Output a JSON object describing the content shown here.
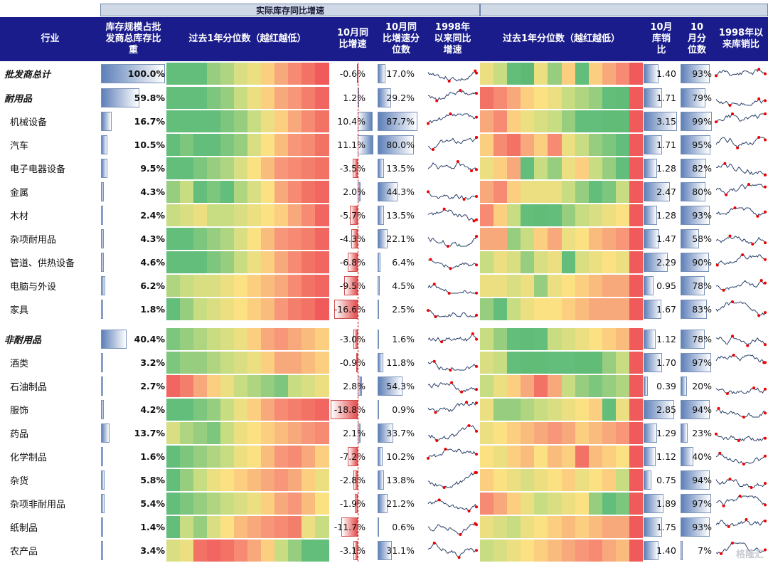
{
  "headers": {
    "group_left": "实际库存同比增速",
    "group_right": "",
    "industry": "行业",
    "share": "库存规模占批发商总库存比重",
    "heat_left": "过去1年分位数（越红越低）",
    "yoy": "10月同比增速",
    "yoy_pct": "10月同比增速分位数",
    "since98_yoy": "1998年以来同比增速",
    "heat_right": "过去1年分位数（越红越低）",
    "ratio": "10月库销比",
    "ratio_pct": "10月分位数",
    "since98_ratio": "1998年以来库销比"
  },
  "watermark": "格隆汇",
  "chart_data": {
    "type": "table",
    "columns": [
      "行业",
      "库存规模占批发商总库存比重",
      "过去1年分位数（越红越低）",
      "10月同比增速",
      "10月同比增速分位数",
      "1998年以来同比增速",
      "过去1年分位数（越红越低）",
      "10月库销比",
      "10月分位数",
      "1998年以来库销比"
    ],
    "rows": [
      {
        "name": "批发商总计",
        "total": true,
        "share": "100.0%",
        "share_v": 100.0,
        "yoy": "-0.6%",
        "yoy_v": -0.6,
        "yoy_pct": "17.0%",
        "yoy_pct_v": 17.0,
        "ratio": "1.40",
        "ratio_v": 1.4,
        "ratio_pct": "93%",
        "ratio_pct_v": 93,
        "heat_left": [
          0.8,
          0.8,
          0.8,
          0.7,
          0.65,
          0.55,
          0.5,
          0.4,
          0.3,
          0.2,
          0.1,
          0.0
        ],
        "heat_right": [
          0.5,
          0.6,
          0.8,
          0.9,
          0.5,
          0.7,
          0.4,
          0.8,
          0.4,
          0.3,
          0.2,
          0.0
        ]
      },
      {
        "name": "耐用品",
        "total": true,
        "share": "59.8%",
        "share_v": 59.8,
        "yoy": "1.2%",
        "yoy_v": 1.2,
        "yoy_pct": "29.2%",
        "yoy_pct_v": 29.2,
        "ratio": "1.71",
        "ratio_v": 1.71,
        "ratio_pct": "79%",
        "ratio_pct_v": 79,
        "heat_left": [
          0.8,
          0.8,
          0.8,
          0.75,
          0.7,
          0.6,
          0.5,
          0.4,
          0.3,
          0.25,
          0.15,
          0.05
        ],
        "heat_right": [
          0.1,
          0.2,
          0.3,
          0.4,
          0.45,
          0.5,
          0.6,
          0.65,
          0.7,
          0.8,
          0.85,
          0.0
        ]
      },
      {
        "name": "机械设备",
        "total": false,
        "share": "16.7%",
        "share_v": 16.7,
        "yoy": "10.4%",
        "yoy_v": 10.4,
        "yoy_pct": "87.7%",
        "yoy_pct_v": 87.7,
        "ratio": "3.15",
        "ratio_v": 3.15,
        "ratio_pct": "99%",
        "ratio_pct_v": 99,
        "heat_left": [
          0.8,
          0.8,
          0.8,
          0.8,
          0.75,
          0.7,
          0.6,
          0.5,
          0.4,
          0.3,
          0.2,
          0.1
        ],
        "heat_right": [
          0.3,
          0.2,
          0.4,
          0.5,
          0.55,
          0.6,
          0.7,
          0.8,
          0.8,
          0.85,
          0.85,
          0.0
        ]
      },
      {
        "name": "汽车",
        "total": false,
        "share": "10.5%",
        "share_v": 10.5,
        "yoy": "11.1%",
        "yoy_v": 11.1,
        "yoy_pct": "80.0%",
        "yoy_pct_v": 80.0,
        "ratio": "1.71",
        "ratio_v": 1.71,
        "ratio_pct": "95%",
        "ratio_pct_v": 95,
        "heat_left": [
          0.8,
          0.75,
          0.8,
          0.8,
          0.75,
          0.7,
          0.55,
          0.45,
          0.35,
          0.25,
          0.2,
          0.1
        ],
        "heat_right": [
          0.4,
          0.2,
          0.1,
          0.3,
          0.4,
          0.2,
          0.5,
          0.6,
          0.7,
          0.75,
          0.8,
          0.0
        ]
      },
      {
        "name": "电子电器设备",
        "total": false,
        "share": "9.5%",
        "share_v": 9.5,
        "yoy": "-3.5%",
        "yoy_v": -3.5,
        "yoy_pct": "13.5%",
        "yoy_pct_v": 13.5,
        "ratio": "1.28",
        "ratio_v": 1.28,
        "ratio_pct": "82%",
        "ratio_pct_v": 82,
        "heat_left": [
          0.8,
          0.8,
          0.75,
          0.7,
          0.65,
          0.55,
          0.45,
          0.35,
          0.25,
          0.2,
          0.15,
          0.1
        ],
        "heat_right": [
          0.5,
          0.4,
          0.3,
          0.8,
          0.6,
          0.7,
          0.5,
          0.4,
          0.6,
          0.7,
          0.8,
          0.0
        ]
      },
      {
        "name": "金属",
        "total": false,
        "share": "4.3%",
        "share_v": 4.3,
        "yoy": "2.0%",
        "yoy_v": 2.0,
        "yoy_pct": "44.3%",
        "yoy_pct_v": 44.3,
        "ratio": "2.47",
        "ratio_v": 2.47,
        "ratio_pct": "80%",
        "ratio_pct_v": 80,
        "heat_left": [
          0.7,
          0.6,
          0.8,
          0.75,
          0.8,
          0.65,
          0.55,
          0.45,
          0.3,
          0.2,
          0.1,
          0.05
        ],
        "heat_right": [
          0.3,
          0.2,
          0.4,
          0.5,
          0.5,
          0.5,
          0.6,
          0.7,
          0.8,
          0.75,
          0.6,
          0.0
        ]
      },
      {
        "name": "木材",
        "total": false,
        "share": "2.4%",
        "share_v": 2.4,
        "yoy": "-5.7%",
        "yoy_v": -5.7,
        "yoy_pct": "13.5%",
        "yoy_pct_v": 13.5,
        "ratio": "1.28",
        "ratio_v": 1.28,
        "ratio_pct": "93%",
        "ratio_pct_v": 93,
        "heat_left": [
          0.6,
          0.55,
          0.5,
          0.6,
          0.6,
          0.55,
          0.5,
          0.45,
          0.4,
          0.3,
          0.2,
          0.05
        ],
        "heat_right": [
          0.2,
          0.4,
          0.6,
          0.8,
          0.85,
          0.8,
          0.7,
          0.6,
          0.55,
          0.5,
          0.45,
          0.0
        ]
      },
      {
        "name": "杂项耐用品",
        "total": false,
        "share": "4.3%",
        "share_v": 4.3,
        "yoy": "-4.3%",
        "yoy_v": -4.3,
        "yoy_pct": "22.1%",
        "yoy_pct_v": 22.1,
        "ratio": "1.47",
        "ratio_v": 1.47,
        "ratio_pct": "58%",
        "ratio_pct_v": 58,
        "heat_left": [
          0.8,
          0.8,
          0.75,
          0.7,
          0.65,
          0.55,
          0.45,
          0.35,
          0.25,
          0.2,
          0.15,
          0.05
        ],
        "heat_right": [
          0.3,
          0.3,
          0.7,
          0.6,
          0.4,
          0.3,
          0.5,
          0.45,
          0.35,
          0.3,
          0.25,
          0.0
        ]
      },
      {
        "name": "管道、供热设备",
        "total": false,
        "share": "4.6%",
        "share_v": 4.6,
        "yoy": "-6.8%",
        "yoy_v": -6.8,
        "yoy_pct": "6.4%",
        "yoy_pct_v": 6.4,
        "ratio": "2.29",
        "ratio_v": 2.29,
        "ratio_pct": "90%",
        "ratio_pct_v": 90,
        "heat_left": [
          0.8,
          0.8,
          0.8,
          0.75,
          0.7,
          0.6,
          0.5,
          0.4,
          0.3,
          0.2,
          0.1,
          0.05
        ],
        "heat_right": [
          0.6,
          0.5,
          0.55,
          0.7,
          0.55,
          0.5,
          0.8,
          0.55,
          0.5,
          0.45,
          0.5,
          0.0
        ]
      },
      {
        "name": "电脑与外设",
        "total": false,
        "share": "6.2%",
        "share_v": 6.2,
        "yoy": "-9.5%",
        "yoy_v": -9.5,
        "yoy_pct": "4.5%",
        "yoy_pct_v": 4.5,
        "ratio": "0.95",
        "ratio_v": 0.95,
        "ratio_pct": "78%",
        "ratio_pct_v": 78,
        "heat_left": [
          0.65,
          0.6,
          0.55,
          0.55,
          0.5,
          0.45,
          0.4,
          0.35,
          0.3,
          0.2,
          0.1,
          0.05
        ],
        "heat_right": [
          0.5,
          0.5,
          0.55,
          0.5,
          0.7,
          0.5,
          0.45,
          0.4,
          0.35,
          0.3,
          0.3,
          0.0
        ]
      },
      {
        "name": "家具",
        "total": false,
        "share": "1.8%",
        "share_v": 1.8,
        "yoy": "-16.6%",
        "yoy_v": -16.6,
        "yoy_pct": "2.5%",
        "yoy_pct_v": 2.5,
        "ratio": "1.67",
        "ratio_v": 1.67,
        "ratio_pct": "83%",
        "ratio_pct_v": 83,
        "heat_left": [
          0.8,
          0.7,
          0.6,
          0.55,
          0.5,
          0.45,
          0.4,
          0.35,
          0.25,
          0.15,
          0.1,
          0.0
        ],
        "heat_right": [
          0.7,
          0.8,
          0.6,
          0.5,
          0.45,
          0.45,
          0.4,
          0.35,
          0.3,
          0.3,
          0.3,
          0.0
        ]
      },
      {
        "name": "非耐用品",
        "total": true,
        "share": "40.4%",
        "share_v": 40.4,
        "yoy": "-3.0%",
        "yoy_v": -3.0,
        "yoy_pct": "1.6%",
        "yoy_pct_v": 1.6,
        "ratio": "1.12",
        "ratio_v": 1.12,
        "ratio_pct": "78%",
        "ratio_pct_v": 78,
        "heat_left": [
          0.75,
          0.7,
          0.65,
          0.6,
          0.55,
          0.5,
          0.4,
          0.3,
          0.25,
          0.3,
          0.35,
          0.4
        ],
        "heat_right": [
          0.6,
          0.7,
          0.8,
          0.85,
          0.8,
          0.6,
          0.55,
          0.5,
          0.45,
          0.4,
          0.35,
          0.0
        ]
      },
      {
        "name": "酒类",
        "total": false,
        "share": "3.2%",
        "share_v": 3.2,
        "yoy": "-0.9%",
        "yoy_v": -0.9,
        "yoy_pct": "11.8%",
        "yoy_pct_v": 11.8,
        "ratio": "1.70",
        "ratio_v": 1.7,
        "ratio_pct": "97%",
        "ratio_pct_v": 97,
        "heat_left": [
          0.75,
          0.7,
          0.7,
          0.65,
          0.6,
          0.55,
          0.5,
          0.4,
          0.3,
          0.3,
          0.35,
          0.4
        ],
        "heat_right": [
          0.55,
          0.6,
          0.8,
          0.85,
          0.85,
          0.8,
          0.8,
          0.85,
          0.85,
          0.7,
          0.6,
          0.0
        ]
      },
      {
        "name": "石油制品",
        "total": false,
        "share": "2.7%",
        "share_v": 2.7,
        "yoy": "2.8%",
        "yoy_v": 2.8,
        "yoy_pct": "54.3%",
        "yoy_pct_v": 54.3,
        "ratio": "0.39",
        "ratio_v": 0.39,
        "ratio_pct": "20%",
        "ratio_pct_v": 20,
        "heat_left": [
          0.05,
          0.15,
          0.3,
          0.4,
          0.5,
          0.6,
          0.65,
          0.7,
          0.75,
          0.6,
          0.55,
          0.5
        ],
        "heat_right": [
          0.6,
          0.5,
          0.4,
          0.3,
          0.1,
          0.3,
          0.6,
          0.7,
          0.75,
          0.7,
          0.65,
          0.0
        ]
      },
      {
        "name": "服饰",
        "total": false,
        "share": "4.2%",
        "share_v": 4.2,
        "yoy": "-18.8%",
        "yoy_v": -18.8,
        "yoy_pct": "0.9%",
        "yoy_pct_v": 0.9,
        "ratio": "2.85",
        "ratio_v": 2.85,
        "ratio_pct": "94%",
        "ratio_pct_v": 94,
        "heat_left": [
          0.8,
          0.8,
          0.75,
          0.7,
          0.6,
          0.5,
          0.4,
          0.3,
          0.2,
          0.15,
          0.1,
          0.05
        ],
        "heat_right": [
          0.5,
          0.7,
          0.7,
          0.65,
          0.6,
          0.55,
          0.5,
          0.45,
          0.4,
          0.8,
          0.5,
          0.0
        ]
      },
      {
        "name": "药品",
        "total": false,
        "share": "13.7%",
        "share_v": 13.7,
        "yoy": "2.1%",
        "yoy_v": 2.1,
        "yoy_pct": "33.7%",
        "yoy_pct_v": 33.7,
        "ratio": "1.29",
        "ratio_v": 1.29,
        "ratio_pct": "23%",
        "ratio_pct_v": 23,
        "heat_left": [
          0.55,
          0.65,
          0.7,
          0.75,
          0.6,
          0.5,
          0.45,
          0.4,
          0.35,
          0.3,
          0.25,
          0.2
        ],
        "heat_right": [
          0.5,
          0.45,
          0.4,
          0.35,
          0.3,
          0.25,
          0.3,
          0.4,
          0.35,
          0.3,
          0.25,
          0.0
        ]
      },
      {
        "name": "化学制品",
        "total": false,
        "share": "1.6%",
        "share_v": 1.6,
        "yoy": "-7.2%",
        "yoy_v": -7.2,
        "yoy_pct": "10.2%",
        "yoy_pct_v": 10.2,
        "ratio": "1.12",
        "ratio_v": 1.12,
        "ratio_pct": "40%",
        "ratio_pct_v": 40,
        "heat_left": [
          0.8,
          0.75,
          0.7,
          0.65,
          0.6,
          0.5,
          0.45,
          0.35,
          0.25,
          0.2,
          0.3,
          0.4
        ],
        "heat_right": [
          0.45,
          0.5,
          0.4,
          0.35,
          0.45,
          0.35,
          0.4,
          0.1,
          0.35,
          0.4,
          0.45,
          0.0
        ]
      },
      {
        "name": "杂货",
        "total": false,
        "share": "5.8%",
        "share_v": 5.8,
        "yoy": "-2.8%",
        "yoy_v": -2.8,
        "yoy_pct": "13.8%",
        "yoy_pct_v": 13.8,
        "ratio": "0.75",
        "ratio_v": 0.75,
        "ratio_pct": "94%",
        "ratio_pct_v": 94,
        "heat_left": [
          0.8,
          0.7,
          0.6,
          0.5,
          0.45,
          0.4,
          0.35,
          0.3,
          0.25,
          0.3,
          0.4,
          0.5
        ],
        "heat_right": [
          0.4,
          0.45,
          0.5,
          0.55,
          0.5,
          0.45,
          0.4,
          0.5,
          0.45,
          0.4,
          0.6,
          0.0
        ]
      },
      {
        "name": "杂项非耐用品",
        "total": false,
        "share": "5.4%",
        "share_v": 5.4,
        "yoy": "-1.9%",
        "yoy_v": -1.9,
        "yoy_pct": "21.2%",
        "yoy_pct_v": 21.2,
        "ratio": "1.89",
        "ratio_v": 1.89,
        "ratio_pct": "97%",
        "ratio_pct_v": 97,
        "heat_left": [
          0.8,
          0.75,
          0.7,
          0.65,
          0.6,
          0.55,
          0.5,
          0.4,
          0.3,
          0.25,
          0.35,
          0.45
        ],
        "heat_right": [
          0.2,
          0.3,
          0.4,
          0.5,
          0.6,
          0.55,
          0.5,
          0.45,
          0.7,
          0.8,
          0.75,
          0.0
        ]
      },
      {
        "name": "纸制品",
        "total": false,
        "share": "1.4%",
        "share_v": 1.4,
        "yoy": "-11.7%",
        "yoy_v": -11.7,
        "yoy_pct": "0.6%",
        "yoy_pct_v": 0.6,
        "ratio": "1.75",
        "ratio_v": 1.75,
        "ratio_pct": "93%",
        "ratio_pct_v": 93,
        "heat_left": [
          0.8,
          0.6,
          0.7,
          0.55,
          0.45,
          0.35,
          0.3,
          0.25,
          0.2,
          0.15,
          0.5,
          0.6
        ],
        "heat_right": [
          0.5,
          0.55,
          0.6,
          0.5,
          0.45,
          0.4,
          0.35,
          0.4,
          0.35,
          0.3,
          0.3,
          0.0
        ]
      },
      {
        "name": "农产品",
        "total": false,
        "share": "3.4%",
        "share_v": 3.4,
        "yoy": "-3.1%",
        "yoy_v": -3.1,
        "yoy_pct": "31.1%",
        "yoy_pct_v": 31.1,
        "ratio": "1.40",
        "ratio_v": 1.4,
        "ratio_pct": "7%",
        "ratio_pct_v": 7,
        "heat_left": [
          0.55,
          0.5,
          0.1,
          0.05,
          0.1,
          0.2,
          0.3,
          0.4,
          0.6,
          0.7,
          0.8,
          0.8
        ],
        "heat_right": [
          0.6,
          0.55,
          0.5,
          0.45,
          0.4,
          0.35,
          0.3,
          0.25,
          0.2,
          0.3,
          0.35,
          0.0
        ]
      }
    ]
  }
}
